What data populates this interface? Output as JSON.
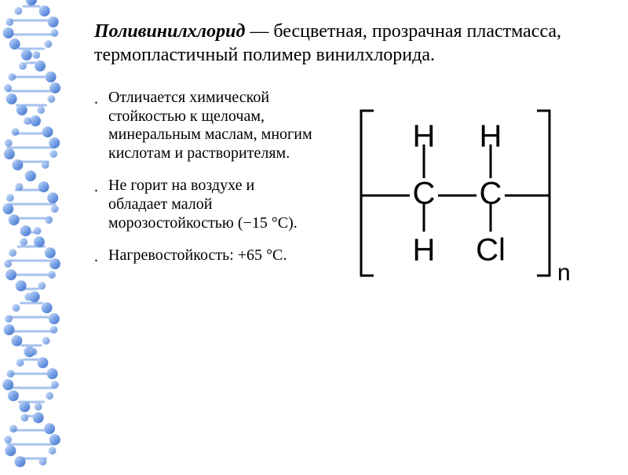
{
  "heading": {
    "term": "Поливинилхлорид",
    "dash": " — ",
    "desc": "бесцветная, прозрачная пластмасса, термопластичный полимер винилхлорида.",
    "font_size": 24,
    "color": "#000000"
  },
  "bullets": {
    "font_size": 20,
    "color": "#000000",
    "items": [
      "Отличается химической стойкостью к щелочам, минеральным маслам, многим кислотам и растворителям.",
      "Не горит на воздухе и обладает малой морозостойкостью (−15 °C).",
      "Нагревостойкость: +65 °C."
    ]
  },
  "formula": {
    "type": "chemical-structure",
    "atoms_top": [
      "H",
      "H"
    ],
    "atoms_mid": [
      "C",
      "C"
    ],
    "atoms_bottom": [
      "H",
      "Cl"
    ],
    "subscript": "n",
    "bracket_color": "#000000",
    "bond_color": "#000000",
    "text_color": "#000000",
    "font_family": "Arial, Helvetica, sans-serif",
    "atom_font_size": 40,
    "sub_font_size": 30,
    "bond_width": 3
  },
  "dna": {
    "strand_color_light": "#9fbef0",
    "strand_color_dark": "#3f6fc8",
    "rung_color": "#a7c2ec",
    "background": "#ffffff"
  }
}
